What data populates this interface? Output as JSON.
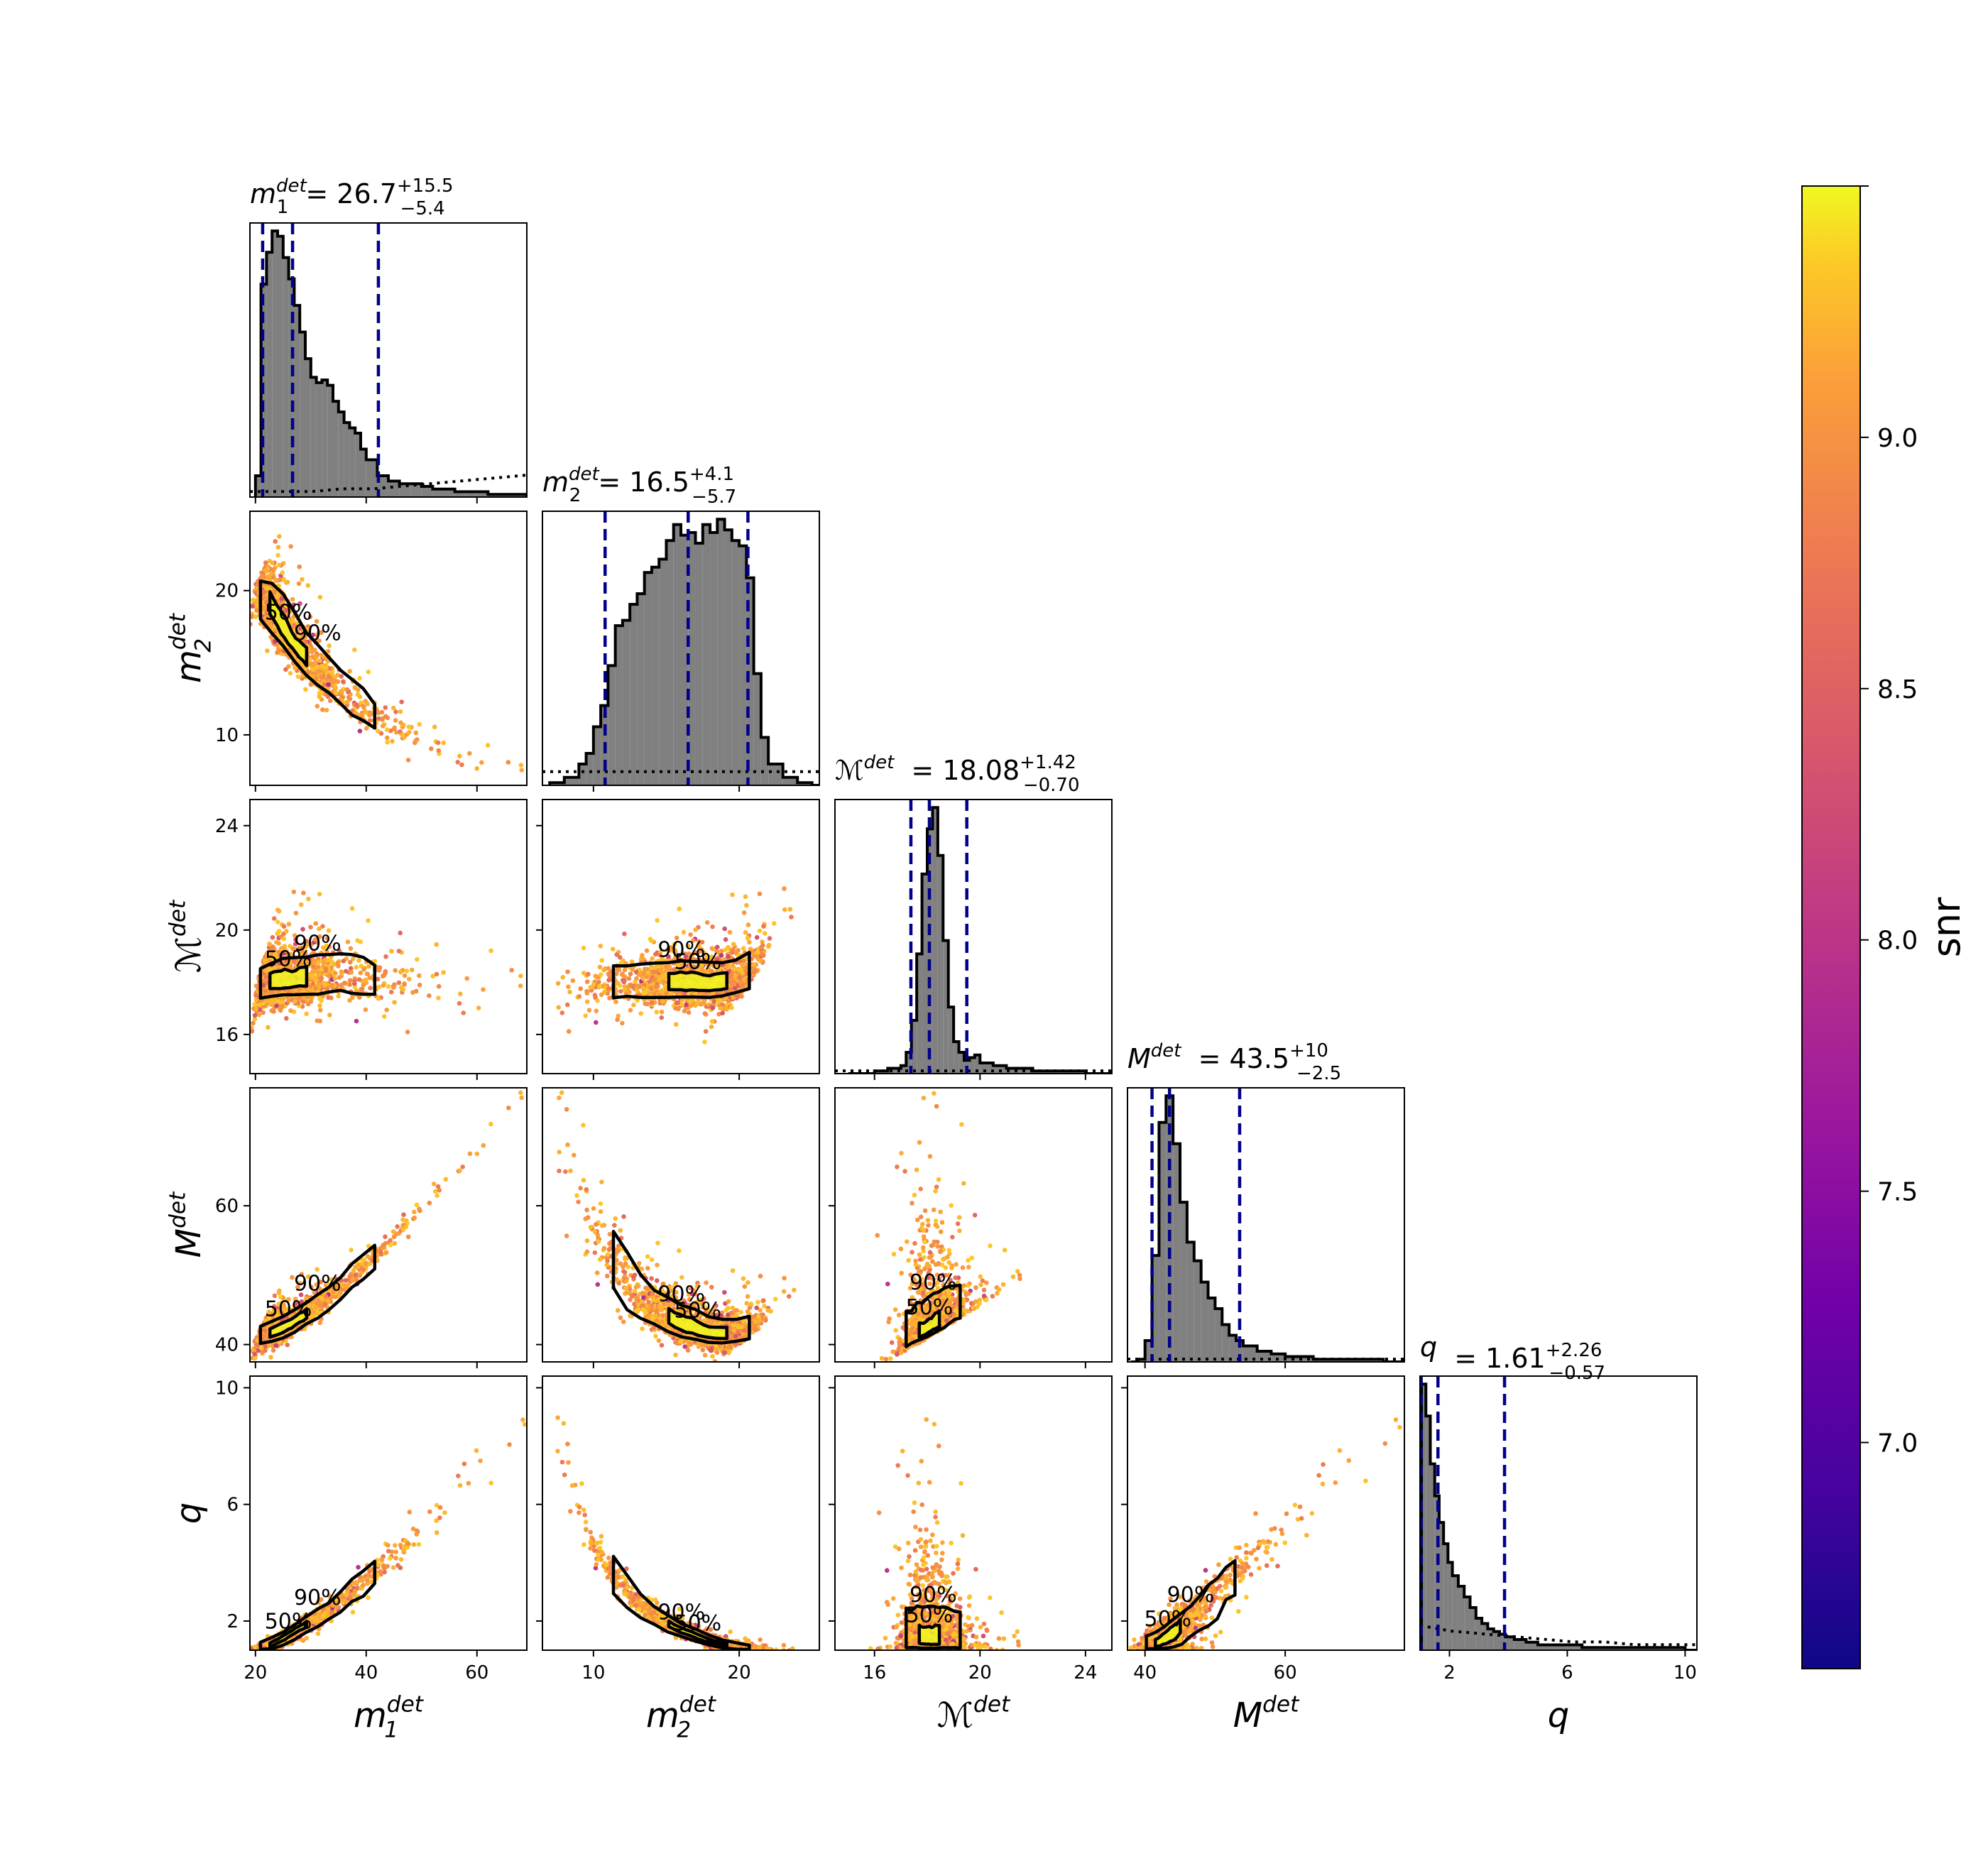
{
  "chart_data": {
    "type": "scatter",
    "subtype": "corner-plot",
    "parameters": [
      {
        "key": "m1",
        "base": "m",
        "sub": "1",
        "sup": "det",
        "range": [
          19,
          69
        ],
        "ticks": [
          20,
          40,
          60
        ],
        "title_value": "26.7",
        "err_plus": "+15.5",
        "err_minus": "−5.4"
      },
      {
        "key": "m2",
        "base": "m",
        "sub": "2",
        "sup": "det",
        "range": [
          6.5,
          25.5
        ],
        "ticks": [
          10,
          20
        ],
        "title_value": "16.5",
        "err_plus": "+4.1",
        "err_minus": "−5.7"
      },
      {
        "key": "mc",
        "base": "ℳ",
        "sub": "",
        "sup": "det",
        "range": [
          14.5,
          25
        ],
        "ticks": [
          16,
          20,
          24
        ],
        "title_value": "18.08",
        "err_plus": "+1.42",
        "err_minus": "−0.70"
      },
      {
        "key": "mt",
        "base": "M",
        "sub": "",
        "sup": "det",
        "range": [
          37.5,
          77
        ],
        "ticks": [
          40,
          60
        ],
        "title_value": "43.5",
        "err_plus": "+10",
        "err_minus": "−2.5"
      },
      {
        "key": "q",
        "base": "q",
        "sub": "",
        "sup": "",
        "range": [
          1,
          10.4
        ],
        "ticks": [
          2,
          6,
          10
        ],
        "title_value": "1.61",
        "err_plus": "+2.26",
        "err_minus": "−0.57"
      }
    ],
    "quantiles": {
      "m1": [
        21.3,
        26.7,
        42.2
      ],
      "m2": [
        10.8,
        16.5,
        20.6
      ],
      "mc": [
        17.38,
        18.08,
        19.5
      ],
      "mt": [
        41.0,
        43.5,
        53.5
      ],
      "q": [
        1.04,
        1.61,
        3.87
      ]
    },
    "histograms": {
      "m1": {
        "x": [
          20,
          21,
          22,
          23,
          24,
          25,
          26,
          27,
          28,
          29,
          30,
          31,
          32,
          33,
          34,
          35,
          36,
          37,
          38,
          39,
          40,
          42,
          44,
          46,
          48,
          50,
          52,
          54,
          56,
          58,
          60,
          62,
          64,
          66,
          68
        ],
        "y": [
          8,
          80,
          92,
          100,
          98,
          90,
          82,
          72,
          62,
          52,
          45,
          43,
          44,
          42,
          36,
          32,
          28,
          26,
          24,
          18,
          14,
          8,
          6,
          5,
          5,
          4,
          3,
          3,
          2,
          2,
          2,
          1,
          1,
          1,
          1
        ]
      },
      "m2": {
        "x": [
          7,
          8,
          9,
          9.5,
          10,
          10.5,
          11,
          11.5,
          12,
          12.5,
          13,
          13.5,
          14,
          14.5,
          15,
          15.5,
          16,
          16.5,
          17,
          17.5,
          18,
          18.5,
          19,
          19.5,
          20,
          20.5,
          21,
          21.5,
          22,
          23,
          24,
          25
        ],
        "y": [
          1,
          3,
          8,
          12,
          22,
          30,
          45,
          60,
          62,
          68,
          72,
          80,
          82,
          85,
          92,
          98,
          94,
          95,
          91,
          98,
          95,
          100,
          96,
          92,
          90,
          78,
          42,
          18,
          8,
          3,
          1,
          0
        ]
      },
      "mc": {
        "x": [
          15,
          16,
          16.5,
          17,
          17.2,
          17.4,
          17.6,
          17.8,
          18,
          18.2,
          18.4,
          18.6,
          18.8,
          19,
          19.2,
          19.4,
          19.6,
          19.8,
          20,
          20.5,
          21,
          22,
          23,
          24,
          25
        ],
        "y": [
          0,
          1,
          2,
          3,
          8,
          20,
          45,
          75,
          92,
          100,
          82,
          50,
          25,
          12,
          8,
          5,
          6,
          7,
          4,
          3,
          2,
          1,
          1,
          0,
          0
        ]
      },
      "mt": {
        "x": [
          38,
          39,
          40,
          41,
          42,
          43,
          44,
          45,
          46,
          47,
          48,
          49,
          50,
          51,
          52,
          53,
          54,
          56,
          58,
          60,
          62,
          64,
          66,
          68,
          70,
          72,
          74,
          76
        ],
        "y": [
          0,
          1,
          8,
          40,
          90,
          100,
          82,
          60,
          45,
          38,
          30,
          24,
          20,
          14,
          10,
          8,
          6,
          4,
          3,
          2,
          2,
          1,
          1,
          1,
          1,
          1,
          0,
          0
        ]
      },
      "q": {
        "x": [
          1.05,
          1.2,
          1.35,
          1.5,
          1.65,
          1.8,
          1.95,
          2.1,
          2.3,
          2.5,
          2.7,
          2.9,
          3.1,
          3.3,
          3.5,
          3.7,
          3.9,
          4.2,
          4.6,
          5,
          5.5,
          6,
          6.5,
          7,
          8,
          9,
          10
        ],
        "y": [
          100,
          88,
          70,
          58,
          48,
          40,
          33,
          28,
          24,
          20,
          16,
          12,
          10,
          8,
          7,
          6,
          5,
          4,
          3,
          2,
          2,
          2,
          1,
          1,
          1,
          1,
          0
        ]
      }
    },
    "prior": {
      "m1": [
        2,
        2,
        2,
        3,
        3,
        4,
        5,
        6,
        7,
        8
      ],
      "m2": [
        5,
        5,
        5,
        5,
        5,
        5,
        5,
        5,
        5,
        5
      ],
      "mc": [
        1,
        1,
        1,
        1,
        1,
        1,
        1,
        1,
        1,
        1
      ],
      "mt": [
        1,
        1,
        1,
        1,
        1,
        1,
        1,
        1,
        1,
        1
      ],
      "q": [
        9,
        7,
        6,
        5,
        4,
        3,
        3,
        2,
        2,
        2
      ]
    },
    "scatter_points": [
      {
        "m1": 22,
        "m2": 21.5,
        "snr": 9.3
      },
      {
        "m1": 24,
        "m2": 20,
        "snr": 9.2
      },
      {
        "m1": 26,
        "m2": 18.5,
        "snr": 9.1
      },
      {
        "m1": 30,
        "m2": 16,
        "snr": 9.0
      },
      {
        "m1": 35,
        "m2": 13.5,
        "snr": 8.9
      },
      {
        "m1": 40,
        "m2": 12,
        "snr": 8.8
      },
      {
        "m1": 45,
        "m2": 10.5,
        "snr": 9.0
      },
      {
        "m1": 55,
        "m2": 8.8,
        "snr": 9.1
      },
      {
        "m1": 62,
        "m2": 8,
        "snr": 8.7
      }
    ],
    "contour_labels": [
      "50%",
      "90%"
    ],
    "colorbar": {
      "label": "snr",
      "range": [
        6.55,
        9.5
      ],
      "ticks": [
        7.0,
        7.5,
        8.0,
        8.5,
        9.0,
        9.5
      ],
      "tick_labels": [
        "7.0",
        "7.5",
        "8.0",
        "8.5",
        "9.0",
        ""
      ],
      "colormap": "plasma"
    },
    "colors": {
      "hist_fill": "#808080",
      "quantile_line": "#00008b",
      "contour": "#000000",
      "yellow": "#f0f921",
      "orange": "#f89540",
      "pink": "#cc4778",
      "purple": "#7e03a8"
    }
  }
}
